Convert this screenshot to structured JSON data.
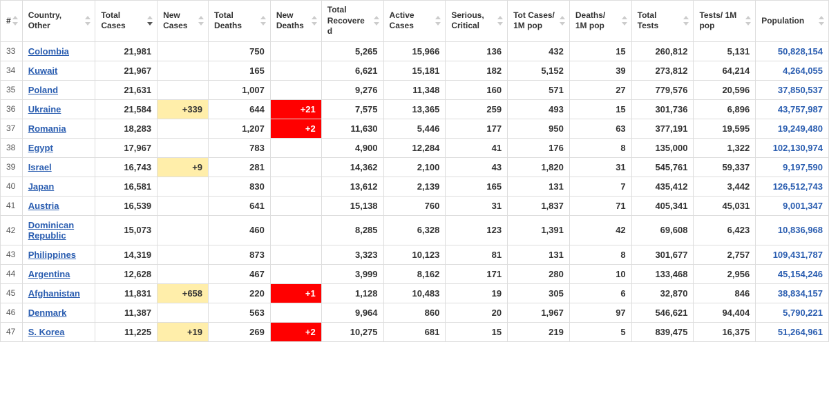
{
  "table": {
    "columns": [
      {
        "key": "idx",
        "label": "#",
        "sortable": true,
        "class": "c-idx"
      },
      {
        "key": "country",
        "label": "Country, Other",
        "sortable": true,
        "class": "c-country"
      },
      {
        "key": "total_cases",
        "label": "Total Cases",
        "sortable": true,
        "sorted": "desc",
        "class": "c-std"
      },
      {
        "key": "new_cases",
        "label": "New Cases",
        "sortable": true,
        "class": "c-new"
      },
      {
        "key": "total_deaths",
        "label": "Total Deaths",
        "sortable": true,
        "class": "c-std"
      },
      {
        "key": "new_deaths",
        "label": "New Deaths",
        "sortable": true,
        "class": "c-new"
      },
      {
        "key": "total_rec",
        "label": "Total Recovered",
        "sortable": true,
        "class": "c-std"
      },
      {
        "key": "active",
        "label": "Active Cases",
        "sortable": true,
        "class": "c-std"
      },
      {
        "key": "serious",
        "label": "Serious, Critical",
        "sortable": true,
        "class": "c-std"
      },
      {
        "key": "cases_1m",
        "label": "Tot Cases/ 1M pop",
        "sortable": true,
        "class": "c-std"
      },
      {
        "key": "deaths_1m",
        "label": "Deaths/ 1M pop",
        "sortable": true,
        "class": "c-std"
      },
      {
        "key": "total_tests",
        "label": "Total Tests",
        "sortable": true,
        "class": "c-std"
      },
      {
        "key": "tests_1m",
        "label": "Tests/ 1M pop",
        "sortable": true,
        "class": "c-std"
      },
      {
        "key": "population",
        "label": "Population",
        "sortable": true,
        "class": "c-pop"
      }
    ],
    "rows": [
      {
        "idx": "33",
        "country": "Colombia",
        "total_cases": "21,981",
        "new_cases": "",
        "total_deaths": "750",
        "new_deaths": "",
        "total_rec": "5,265",
        "active": "15,966",
        "serious": "136",
        "cases_1m": "432",
        "deaths_1m": "15",
        "total_tests": "260,812",
        "tests_1m": "5,131",
        "population": "50,828,154"
      },
      {
        "idx": "34",
        "country": "Kuwait",
        "total_cases": "21,967",
        "new_cases": "",
        "total_deaths": "165",
        "new_deaths": "",
        "total_rec": "6,621",
        "active": "15,181",
        "serious": "182",
        "cases_1m": "5,152",
        "deaths_1m": "39",
        "total_tests": "273,812",
        "tests_1m": "64,214",
        "population": "4,264,055"
      },
      {
        "idx": "35",
        "country": "Poland",
        "total_cases": "21,631",
        "new_cases": "",
        "total_deaths": "1,007",
        "new_deaths": "",
        "total_rec": "9,276",
        "active": "11,348",
        "serious": "160",
        "cases_1m": "571",
        "deaths_1m": "27",
        "total_tests": "779,576",
        "tests_1m": "20,596",
        "population": "37,850,537"
      },
      {
        "idx": "36",
        "country": "Ukraine",
        "total_cases": "21,584",
        "new_cases": "+339",
        "total_deaths": "644",
        "new_deaths": "+21",
        "total_rec": "7,575",
        "active": "13,365",
        "serious": "259",
        "cases_1m": "493",
        "deaths_1m": "15",
        "total_tests": "301,736",
        "tests_1m": "6,896",
        "population": "43,757,987",
        "hl_new_cases": "yellow",
        "hl_new_deaths": "red"
      },
      {
        "idx": "37",
        "country": "Romania",
        "total_cases": "18,283",
        "new_cases": "",
        "total_deaths": "1,207",
        "new_deaths": "+2",
        "total_rec": "11,630",
        "active": "5,446",
        "serious": "177",
        "cases_1m": "950",
        "deaths_1m": "63",
        "total_tests": "377,191",
        "tests_1m": "19,595",
        "population": "19,249,480",
        "hl_new_deaths": "red"
      },
      {
        "idx": "38",
        "country": "Egypt",
        "total_cases": "17,967",
        "new_cases": "",
        "total_deaths": "783",
        "new_deaths": "",
        "total_rec": "4,900",
        "active": "12,284",
        "serious": "41",
        "cases_1m": "176",
        "deaths_1m": "8",
        "total_tests": "135,000",
        "tests_1m": "1,322",
        "population": "102,130,974"
      },
      {
        "idx": "39",
        "country": "Israel",
        "total_cases": "16,743",
        "new_cases": "+9",
        "total_deaths": "281",
        "new_deaths": "",
        "total_rec": "14,362",
        "active": "2,100",
        "serious": "43",
        "cases_1m": "1,820",
        "deaths_1m": "31",
        "total_tests": "545,761",
        "tests_1m": "59,337",
        "population": "9,197,590",
        "hl_new_cases": "yellow"
      },
      {
        "idx": "40",
        "country": "Japan",
        "total_cases": "16,581",
        "new_cases": "",
        "total_deaths": "830",
        "new_deaths": "",
        "total_rec": "13,612",
        "active": "2,139",
        "serious": "165",
        "cases_1m": "131",
        "deaths_1m": "7",
        "total_tests": "435,412",
        "tests_1m": "3,442",
        "population": "126,512,743"
      },
      {
        "idx": "41",
        "country": "Austria",
        "total_cases": "16,539",
        "new_cases": "",
        "total_deaths": "641",
        "new_deaths": "",
        "total_rec": "15,138",
        "active": "760",
        "serious": "31",
        "cases_1m": "1,837",
        "deaths_1m": "71",
        "total_tests": "405,341",
        "tests_1m": "45,031",
        "population": "9,001,347"
      },
      {
        "idx": "42",
        "country": "Dominican Republic",
        "total_cases": "15,073",
        "new_cases": "",
        "total_deaths": "460",
        "new_deaths": "",
        "total_rec": "8,285",
        "active": "6,328",
        "serious": "123",
        "cases_1m": "1,391",
        "deaths_1m": "42",
        "total_tests": "69,608",
        "tests_1m": "6,423",
        "population": "10,836,968"
      },
      {
        "idx": "43",
        "country": "Philippines",
        "total_cases": "14,319",
        "new_cases": "",
        "total_deaths": "873",
        "new_deaths": "",
        "total_rec": "3,323",
        "active": "10,123",
        "serious": "81",
        "cases_1m": "131",
        "deaths_1m": "8",
        "total_tests": "301,677",
        "tests_1m": "2,757",
        "population": "109,431,787"
      },
      {
        "idx": "44",
        "country": "Argentina",
        "total_cases": "12,628",
        "new_cases": "",
        "total_deaths": "467",
        "new_deaths": "",
        "total_rec": "3,999",
        "active": "8,162",
        "serious": "171",
        "cases_1m": "280",
        "deaths_1m": "10",
        "total_tests": "133,468",
        "tests_1m": "2,956",
        "population": "45,154,246"
      },
      {
        "idx": "45",
        "country": "Afghanistan",
        "total_cases": "11,831",
        "new_cases": "+658",
        "total_deaths": "220",
        "new_deaths": "+1",
        "total_rec": "1,128",
        "active": "10,483",
        "serious": "19",
        "cases_1m": "305",
        "deaths_1m": "6",
        "total_tests": "32,870",
        "tests_1m": "846",
        "population": "38,834,157",
        "hl_new_cases": "yellow",
        "hl_new_deaths": "red"
      },
      {
        "idx": "46",
        "country": "Denmark",
        "total_cases": "11,387",
        "new_cases": "",
        "total_deaths": "563",
        "new_deaths": "",
        "total_rec": "9,964",
        "active": "860",
        "serious": "20",
        "cases_1m": "1,967",
        "deaths_1m": "97",
        "total_tests": "546,621",
        "tests_1m": "94,404",
        "population": "5,790,221"
      },
      {
        "idx": "47",
        "country": "S. Korea",
        "total_cases": "11,225",
        "new_cases": "+19",
        "total_deaths": "269",
        "new_deaths": "+2",
        "total_rec": "10,275",
        "active": "681",
        "serious": "15",
        "cases_1m": "219",
        "deaths_1m": "5",
        "total_tests": "839,475",
        "tests_1m": "16,375",
        "population": "51,264,961",
        "hl_new_cases": "yellow",
        "hl_new_deaths": "red"
      }
    ]
  },
  "colors": {
    "link": "#2a5db0",
    "border": "#dddddd",
    "hl_yellow": "#ffeeaa",
    "hl_red": "#ff0000"
  }
}
